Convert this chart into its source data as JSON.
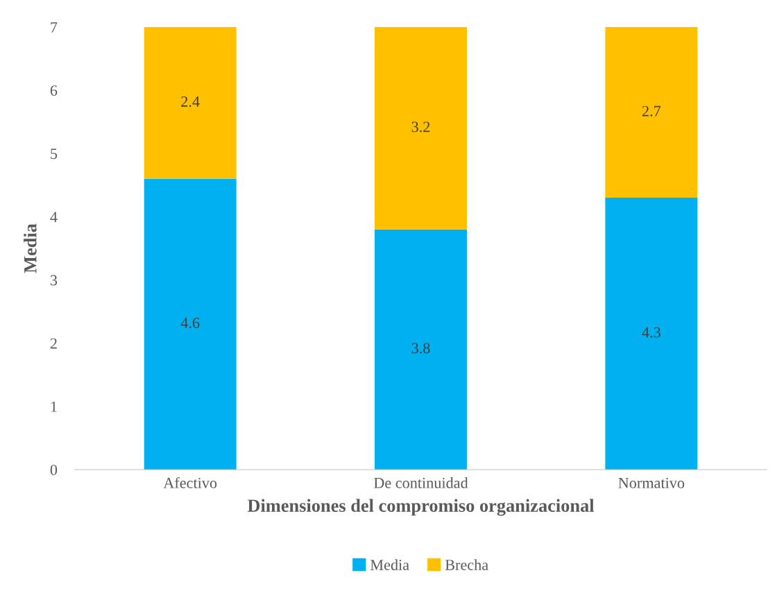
{
  "chart_data": {
    "type": "bar",
    "stacked": true,
    "xlabel": "Dimensiones del compromiso organizacional",
    "ylabel": "Media",
    "categories": [
      "Afectivo",
      "De continuidad",
      "Normativo"
    ],
    "series": [
      {
        "name": "Media",
        "color": "#00b0f0",
        "values": [
          4.6,
          3.8,
          4.3
        ]
      },
      {
        "name": "Brecha",
        "color": "#ffc000",
        "values": [
          2.4,
          3.2,
          2.7
        ]
      }
    ],
    "ylim": [
      0,
      7
    ],
    "yticks": [
      0,
      1,
      2,
      3,
      4,
      5,
      6,
      7
    ],
    "grid": false,
    "legend": "bottom",
    "data_labels": true
  }
}
